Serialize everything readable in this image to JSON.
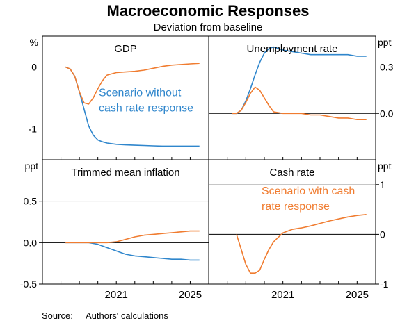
{
  "title": "Macroeconomic Responses",
  "subtitle": "Deviation from baseline",
  "source_label": "Source:",
  "source_text": "Authors' calculations",
  "colors": {
    "without": "#2f86cc",
    "with": "#f07c30",
    "axis": "#000000",
    "grid": "#b4b4b4"
  },
  "chart_data": [
    {
      "type": "line",
      "title": "GDP",
      "unit_left": "%",
      "unit_right": "",
      "ylim": [
        -1.5,
        0.5
      ],
      "left_ticks": [
        "0",
        "-1"
      ],
      "left_tick_values": [
        0,
        -1
      ],
      "right_ticks": [],
      "right_tick_values": [],
      "x_ticks": [],
      "zero_line": true,
      "series": [
        {
          "name": "Scenario without cash rate response",
          "color": "without",
          "x": [
            2018.25,
            2018.5,
            2018.75,
            2019.0,
            2019.25,
            2019.5,
            2019.75,
            2020.0,
            2020.25,
            2020.5,
            2021.0,
            2021.5,
            2022.0,
            2022.5,
            2023.0,
            2023.5,
            2024.0,
            2024.5,
            2025.0,
            2025.5
          ],
          "y": [
            0,
            -0.03,
            -0.15,
            -0.4,
            -0.68,
            -0.95,
            -1.1,
            -1.18,
            -1.21,
            -1.23,
            -1.25,
            -1.26,
            -1.265,
            -1.27,
            -1.275,
            -1.28,
            -1.28,
            -1.28,
            -1.28,
            -1.28
          ]
        },
        {
          "name": "Scenario with cash rate response",
          "color": "with",
          "x": [
            2018.25,
            2018.5,
            2018.75,
            2019.0,
            2019.25,
            2019.5,
            2019.75,
            2020.0,
            2020.25,
            2020.5,
            2021.0,
            2021.5,
            2022.0,
            2022.5,
            2023.0,
            2023.5,
            2024.0,
            2024.5,
            2025.0,
            2025.5
          ],
          "y": [
            0,
            -0.03,
            -0.15,
            -0.4,
            -0.58,
            -0.6,
            -0.5,
            -0.35,
            -0.22,
            -0.13,
            -0.09,
            -0.08,
            -0.07,
            -0.05,
            -0.02,
            0.01,
            0.03,
            0.04,
            0.05,
            0.06
          ]
        }
      ],
      "annotations": [
        {
          "lines": [
            "Scenario without",
            "cash rate response"
          ],
          "color": "without",
          "x": 2020.05,
          "y": -0.47
        }
      ]
    },
    {
      "type": "line",
      "title": "Unemployment rate",
      "unit_left": "",
      "unit_right": "ppt",
      "ylim": [
        -0.3,
        0.5
      ],
      "left_ticks": [],
      "left_tick_values": [],
      "right_ticks": [
        "0.3",
        "0.0"
      ],
      "right_tick_values": [
        0.3,
        0.0
      ],
      "x_ticks": [],
      "zero_line": true,
      "series": [
        {
          "name": "Scenario without cash rate response",
          "color": "without",
          "x": [
            2018.25,
            2018.5,
            2018.75,
            2019.0,
            2019.25,
            2019.5,
            2019.75,
            2020.0,
            2020.25,
            2020.5,
            2021.0,
            2021.5,
            2022.0,
            2022.5,
            2023.0,
            2023.5,
            2024.0,
            2024.5,
            2025.0,
            2025.5
          ],
          "y": [
            0,
            0,
            0.02,
            0.08,
            0.16,
            0.25,
            0.33,
            0.39,
            0.42,
            0.43,
            0.41,
            0.4,
            0.39,
            0.38,
            0.38,
            0.38,
            0.38,
            0.38,
            0.37,
            0.37
          ]
        },
        {
          "name": "Scenario with cash rate response",
          "color": "with",
          "x": [
            2018.25,
            2018.5,
            2018.75,
            2019.0,
            2019.25,
            2019.5,
            2019.75,
            2020.0,
            2020.25,
            2020.5,
            2021.0,
            2021.5,
            2022.0,
            2022.5,
            2023.0,
            2023.5,
            2024.0,
            2024.5,
            2025.0,
            2025.5
          ],
          "y": [
            0,
            0,
            0.02,
            0.07,
            0.13,
            0.17,
            0.15,
            0.1,
            0.05,
            0.01,
            0,
            0,
            0,
            -0.01,
            -0.01,
            -0.02,
            -0.03,
            -0.03,
            -0.04,
            -0.04
          ]
        }
      ],
      "annotations": []
    },
    {
      "type": "line",
      "title": "Trimmed mean inflation",
      "unit_left": "ppt",
      "unit_right": "",
      "ylim": [
        -0.5,
        1.0
      ],
      "left_ticks": [
        "0.5",
        "0.0",
        "-0.5"
      ],
      "left_tick_values": [
        0.5,
        0.0,
        -0.5
      ],
      "right_ticks": [],
      "right_tick_values": [],
      "x_ticks": [
        "2021",
        "2025"
      ],
      "x_tick_values": [
        2021,
        2025
      ],
      "zero_line": true,
      "series": [
        {
          "name": "Scenario without cash rate response",
          "color": "without",
          "x": [
            2018.25,
            2018.5,
            2018.75,
            2019.0,
            2019.25,
            2019.5,
            2019.75,
            2020.0,
            2020.25,
            2020.5,
            2021.0,
            2021.5,
            2022.0,
            2022.5,
            2023.0,
            2023.5,
            2024.0,
            2024.5,
            2025.0,
            2025.5
          ],
          "y": [
            0,
            0,
            0,
            0,
            0,
            0,
            -0.01,
            -0.02,
            -0.04,
            -0.06,
            -0.1,
            -0.14,
            -0.16,
            -0.17,
            -0.18,
            -0.19,
            -0.2,
            -0.2,
            -0.21,
            -0.21
          ]
        },
        {
          "name": "Scenario with cash rate response",
          "color": "with",
          "x": [
            2018.25,
            2018.5,
            2018.75,
            2019.0,
            2019.25,
            2019.5,
            2019.75,
            2020.0,
            2020.25,
            2020.5,
            2021.0,
            2021.5,
            2022.0,
            2022.5,
            2023.0,
            2023.5,
            2024.0,
            2024.5,
            2025.0,
            2025.5
          ],
          "y": [
            0,
            0,
            0,
            0,
            0,
            0,
            0,
            0,
            0,
            0,
            0.01,
            0.04,
            0.07,
            0.09,
            0.1,
            0.11,
            0.12,
            0.13,
            0.14,
            0.14
          ]
        }
      ],
      "annotations": []
    },
    {
      "type": "line",
      "title": "Cash rate",
      "unit_left": "",
      "unit_right": "ppt",
      "ylim": [
        -1.0,
        1.5
      ],
      "left_ticks": [],
      "left_tick_values": [],
      "right_ticks": [
        "1",
        "0",
        "-1"
      ],
      "right_tick_values": [
        1,
        0,
        -1
      ],
      "x_ticks": [
        "2021",
        "2025"
      ],
      "x_tick_values": [
        2021,
        2025
      ],
      "zero_line": true,
      "series": [
        {
          "name": "Scenario with cash rate response",
          "color": "with",
          "x": [
            2018.5,
            2018.75,
            2019.0,
            2019.25,
            2019.5,
            2019.75,
            2020.0,
            2020.25,
            2020.5,
            2021.0,
            2021.5,
            2022.0,
            2022.5,
            2023.0,
            2023.5,
            2024.0,
            2024.5,
            2025.0,
            2025.5
          ],
          "y": [
            0,
            -0.3,
            -0.6,
            -0.78,
            -0.78,
            -0.72,
            -0.5,
            -0.3,
            -0.15,
            0.03,
            0.1,
            0.13,
            0.17,
            0.22,
            0.27,
            0.31,
            0.35,
            0.38,
            0.4
          ]
        }
      ],
      "annotations": [
        {
          "lines": [
            "Scenario with cash",
            "rate response"
          ],
          "color": "with",
          "x": 2019.85,
          "y": 0.8
        }
      ]
    }
  ]
}
